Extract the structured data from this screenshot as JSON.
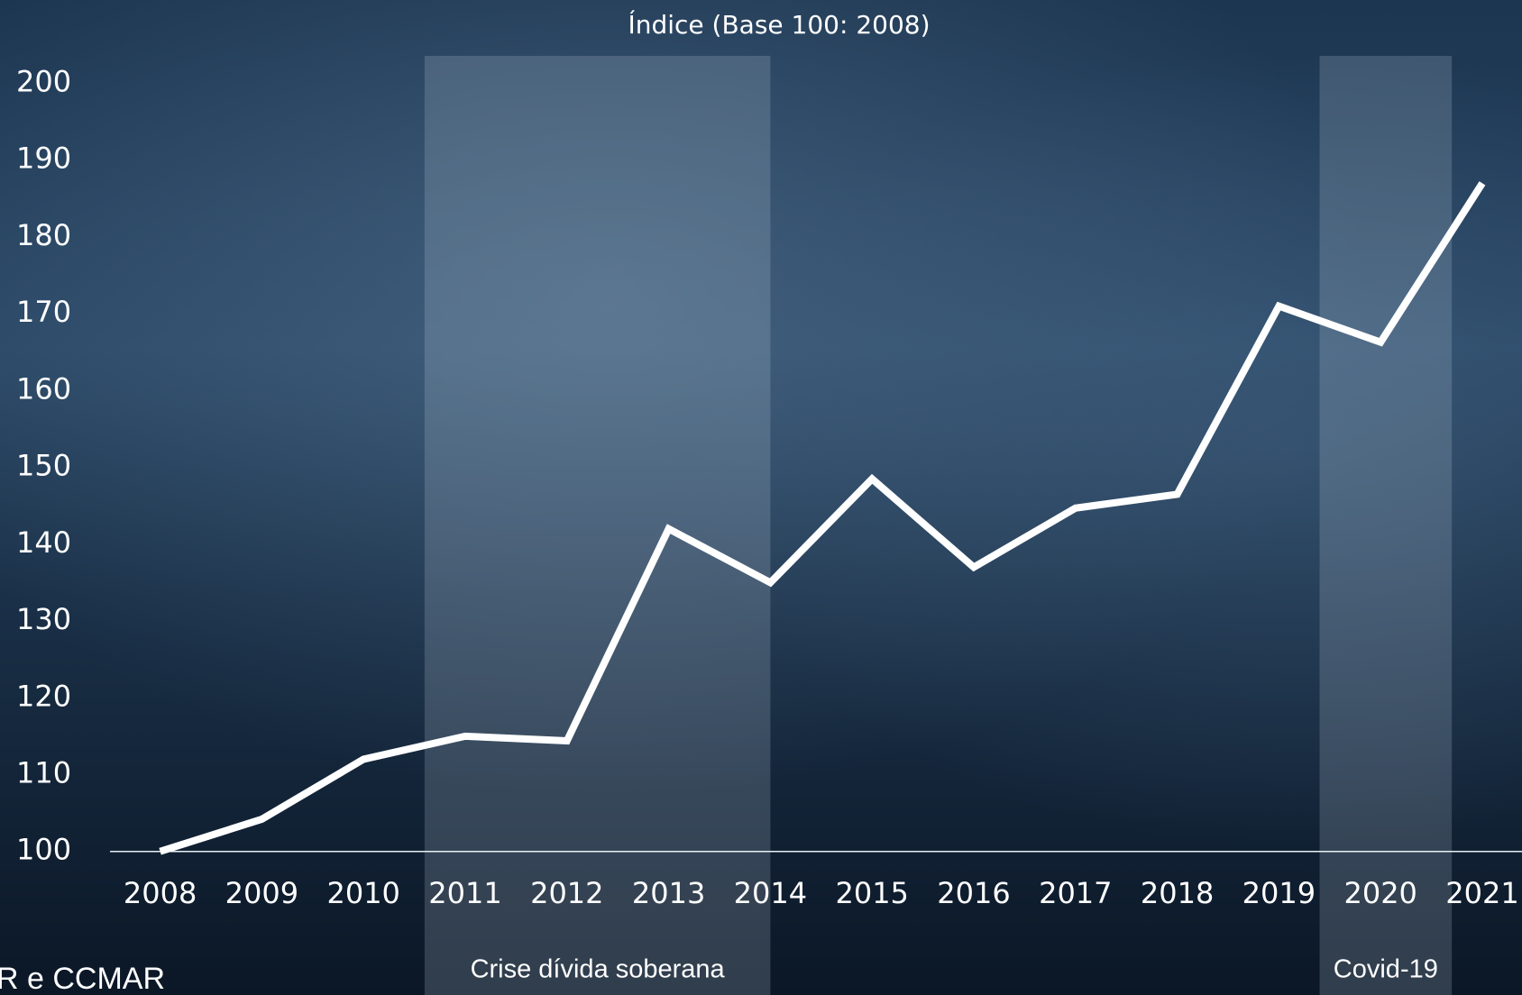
{
  "chart_data": {
    "type": "line",
    "title": "Índice (Base 100: 2008)",
    "x": [
      2008,
      2009,
      2010,
      2011,
      2012,
      2013,
      2014,
      2015,
      2016,
      2017,
      2018,
      2019,
      2020,
      2021
    ],
    "xlim": [
      2008,
      2021
    ],
    "xticks": [
      2008,
      2009,
      2010,
      2011,
      2012,
      2013,
      2014,
      2015,
      2016,
      2017,
      2018,
      2019,
      2020,
      2021
    ],
    "series": [
      {
        "color": "#ffffff",
        "values": [
          100,
          104.2,
          112,
          115,
          114.4,
          142,
          135,
          148.5,
          137,
          144.7,
          146.5,
          171,
          166.3,
          187
        ]
      }
    ],
    "ylim": [
      100,
      200
    ],
    "yticks": [
      100,
      110,
      120,
      130,
      140,
      150,
      160,
      170,
      180,
      190,
      200
    ],
    "shaded_periods": [
      {
        "label": "Crise dívida soberana",
        "x_range": [
          2010.6,
          2014
        ]
      },
      {
        "label": "Covid-19",
        "x_range": [
          2019.4,
          2020.7
        ]
      }
    ],
    "source_text": "R e CCMAR"
  }
}
